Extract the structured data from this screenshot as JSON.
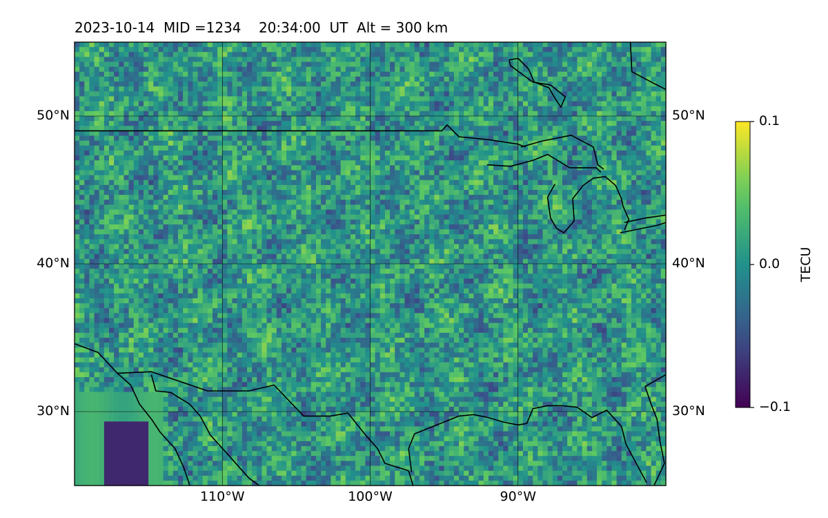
{
  "title": "2023-10-14  MID =1234    20:34:00  UT  Alt = 300 km",
  "map": {
    "extent": {
      "lon": [
        -120,
        -80
      ],
      "lat": [
        25,
        55
      ]
    },
    "lat_ticks": [
      {
        "value": 30,
        "label": "30°N"
      },
      {
        "value": 40,
        "label": "40°N"
      },
      {
        "value": 50,
        "label": "50°N"
      }
    ],
    "lon_ticks": [
      {
        "value": -110,
        "label": "110°W"
      },
      {
        "value": -100,
        "label": "100°W"
      },
      {
        "value": -90,
        "label": "90°W"
      }
    ],
    "gridlines": true
  },
  "colorbar": {
    "label": "TECU",
    "colormap": "viridis",
    "min": -0.1,
    "max": 0.1,
    "ticks": [
      {
        "value": 0.1,
        "label": "0.1"
      },
      {
        "value": 0.0,
        "label": "0.0"
      },
      {
        "value": -0.1,
        "label": "−0.1"
      }
    ]
  },
  "colors": {
    "colormap_low": "#440154",
    "colormap_mid": "#21918c",
    "colormap_high": "#fde725"
  }
}
